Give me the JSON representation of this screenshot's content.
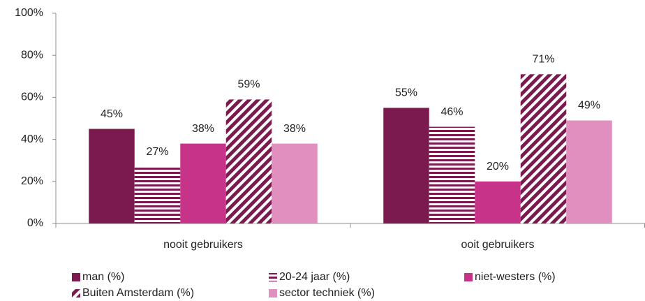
{
  "chart_data": {
    "type": "bar",
    "categories": [
      "nooit gebruikers",
      "ooit gebruikers"
    ],
    "series": [
      {
        "name": "man (%)",
        "color": "#7b1a4f",
        "values": [
          45,
          55
        ],
        "value_labels": [
          "45%",
          "55%"
        ]
      },
      {
        "name": "20-24 jaar (%)",
        "color": "#7b1a4f",
        "pattern": "horizontal",
        "values": [
          27,
          46
        ],
        "value_labels": [
          "27%",
          "46%"
        ]
      },
      {
        "name": "niet-westers (%)",
        "color": "#c8338a",
        "values": [
          38,
          20
        ],
        "value_labels": [
          "38%",
          "20%"
        ]
      },
      {
        "name": "Buiten Amsterdam (%)",
        "color": "#7b1a4f",
        "pattern": "diagonal",
        "values": [
          59,
          71
        ],
        "value_labels": [
          "59%",
          "71%"
        ]
      },
      {
        "name": "sector techniek (%)",
        "color": "#e08fbf",
        "values": [
          38,
          49
        ],
        "value_labels": [
          "38%",
          "49%"
        ]
      }
    ],
    "ylim": [
      0,
      100
    ],
    "yticks": [
      {
        "value": 0,
        "label": "0%"
      },
      {
        "value": 20,
        "label": "20%"
      },
      {
        "value": 40,
        "label": "40%"
      },
      {
        "value": 60,
        "label": "60%"
      },
      {
        "value": 80,
        "label": "80%"
      },
      {
        "value": 100,
        "label": "100%"
      }
    ],
    "grid": false,
    "legend": "bottom"
  }
}
